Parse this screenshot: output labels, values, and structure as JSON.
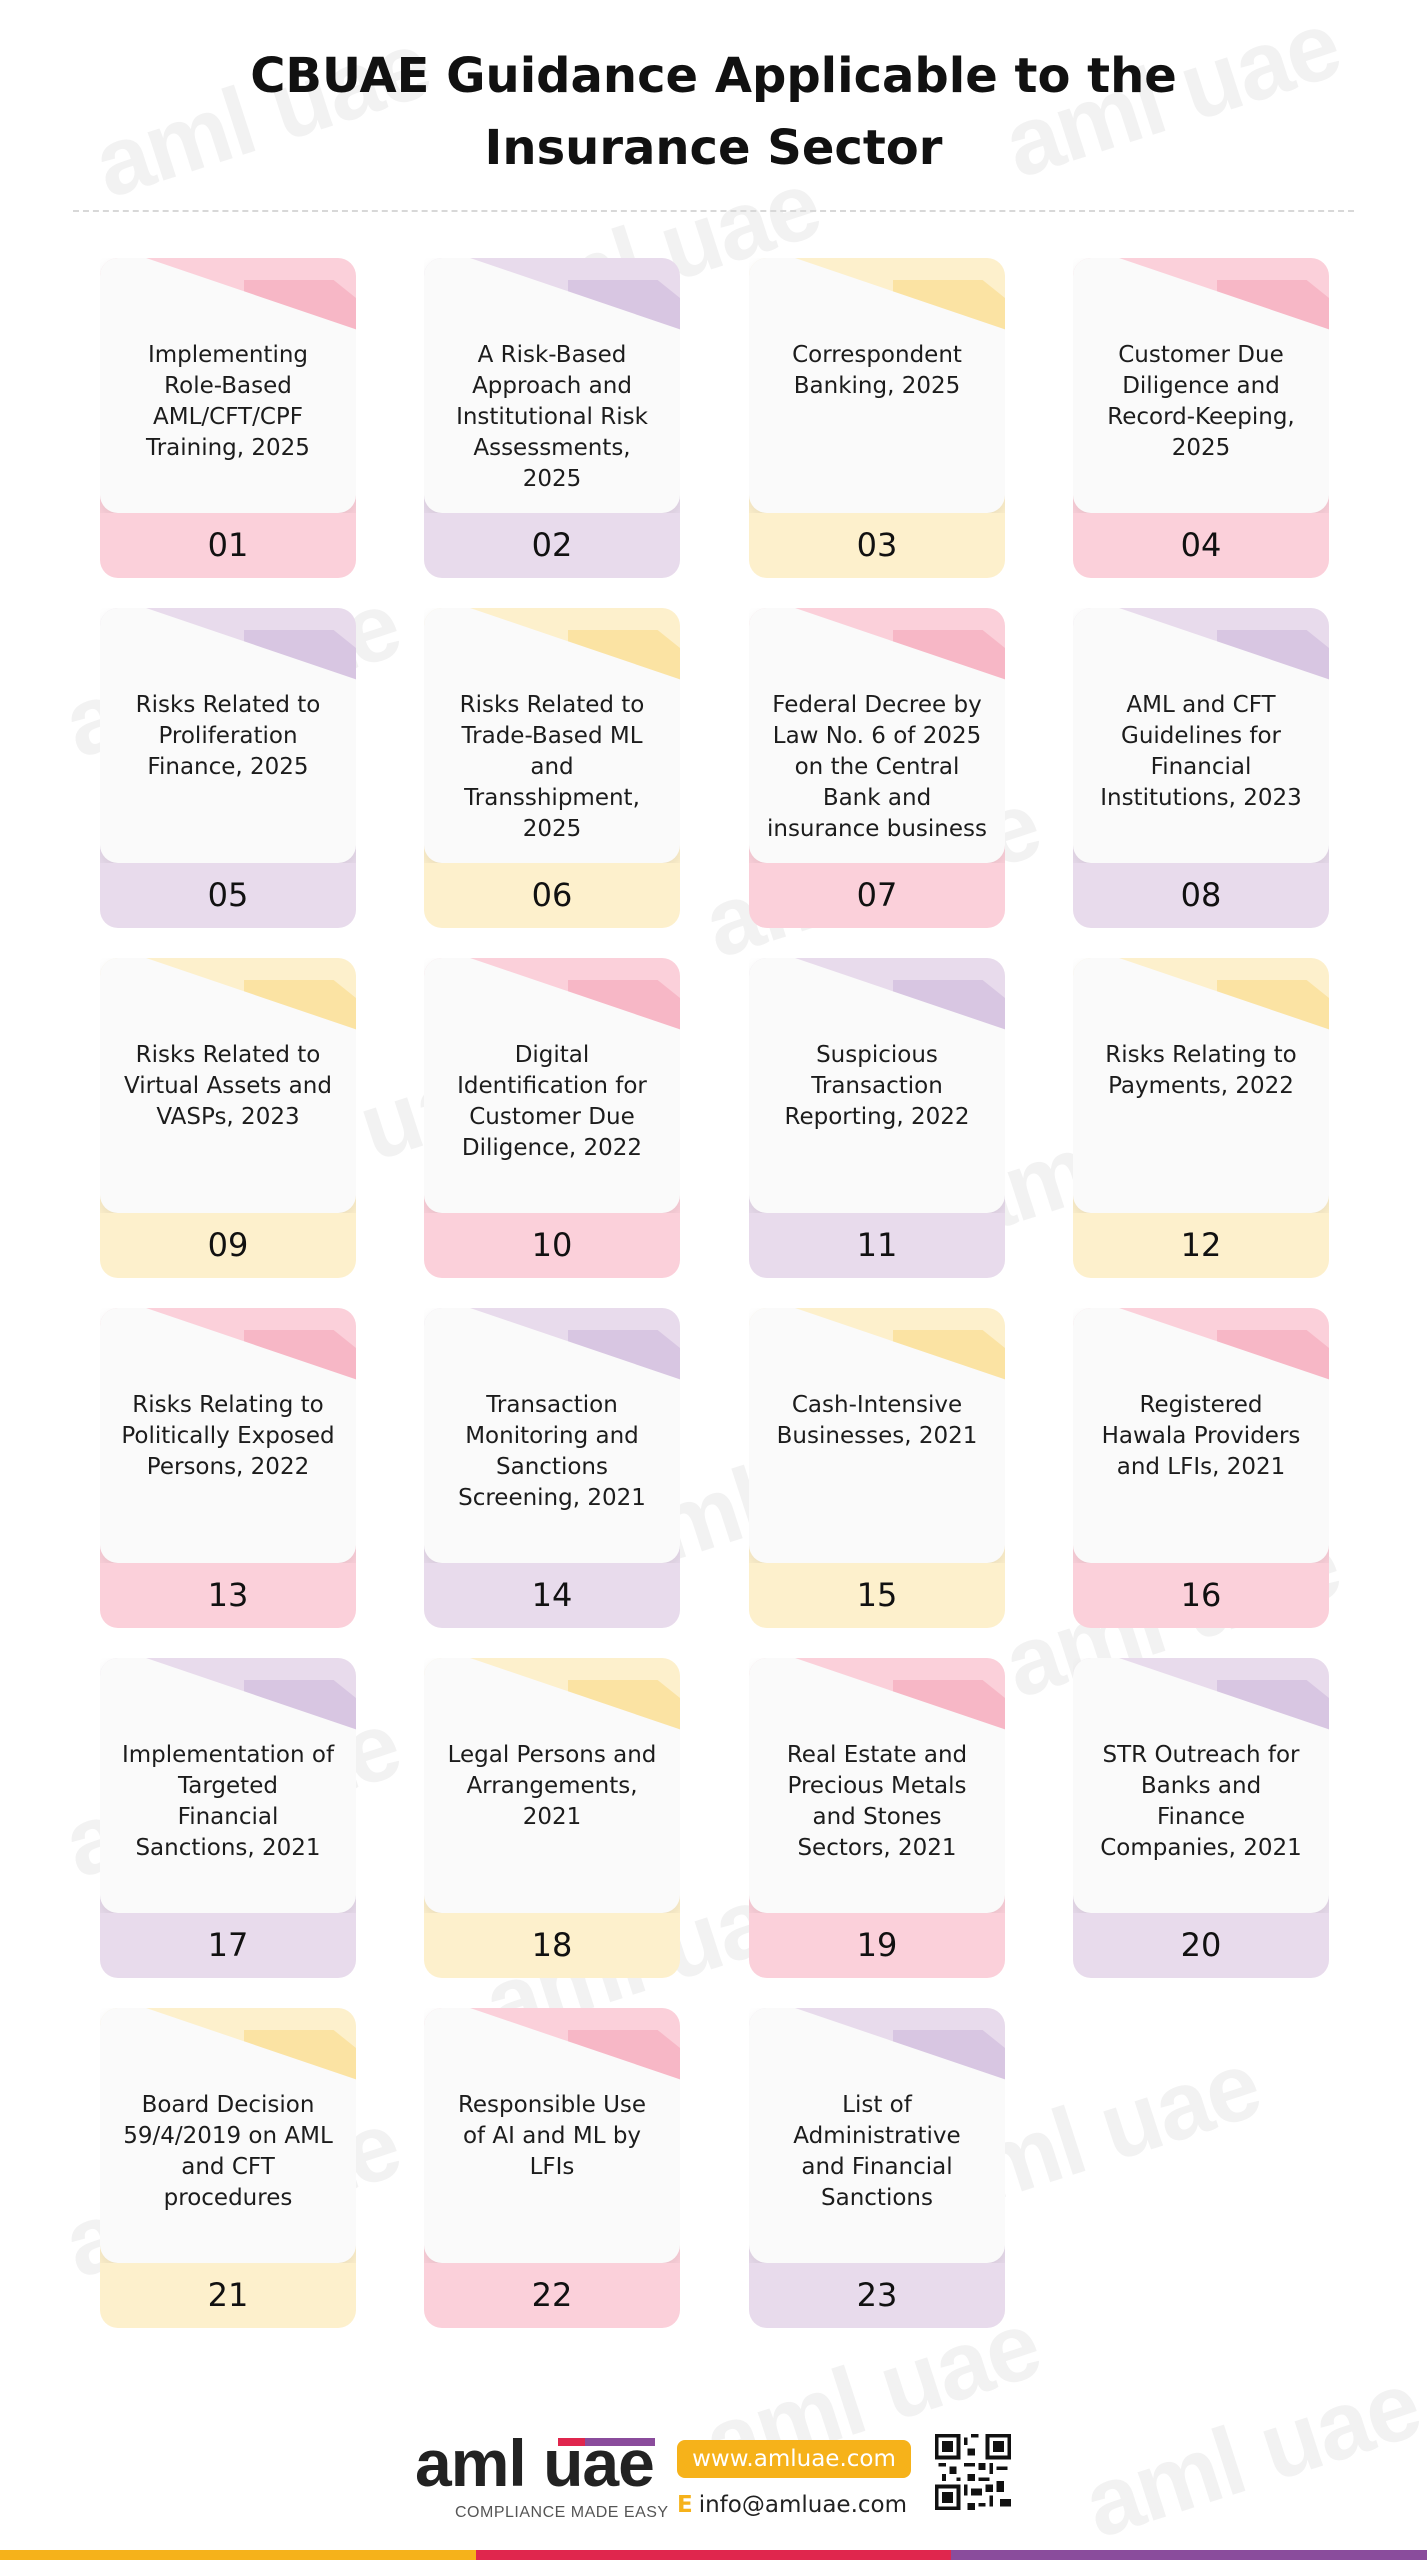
{
  "title": {
    "line1": "CBUAE Guidance Applicable to the",
    "line2": "Insurance Sector"
  },
  "watermark": "aml uae",
  "cards": [
    {
      "number": "01",
      "lines": [
        "Implementing",
        "Role-Based",
        "AML/CFT/CPF",
        "Training, 2025"
      ],
      "color": "pink"
    },
    {
      "number": "02",
      "lines": [
        "A Risk-Based",
        "Approach and",
        "Institutional Risk",
        "Assessments,",
        "2025"
      ],
      "color": "lavender"
    },
    {
      "number": "03",
      "lines": [
        "Correspondent",
        "Banking, 2025"
      ],
      "color": "yellow"
    },
    {
      "number": "04",
      "lines": [
        "Customer Due",
        "Diligence and",
        "Record-Keeping,",
        "2025"
      ],
      "color": "pink"
    },
    {
      "number": "05",
      "lines": [
        "Risks Related to",
        "Proliferation",
        "Finance, 2025"
      ],
      "color": "lavender"
    },
    {
      "number": "06",
      "lines": [
        "Risks Related to",
        "Trade-Based ML",
        "and",
        "Transshipment,",
        "2025"
      ],
      "color": "yellow"
    },
    {
      "number": "07",
      "lines": [
        "Federal Decree by",
        "Law No. 6 of 2025",
        "on the Central",
        "Bank and",
        "insurance business"
      ],
      "color": "pink"
    },
    {
      "number": "08",
      "lines": [
        "AML and CFT",
        "Guidelines for",
        "Financial",
        "Institutions, 2023"
      ],
      "color": "lavender"
    },
    {
      "number": "09",
      "lines": [
        "Risks Related to",
        "Virtual Assets and",
        "VASPs, 2023"
      ],
      "color": "yellow"
    },
    {
      "number": "10",
      "lines": [
        "Digital",
        "Identification for",
        "Customer Due",
        "Diligence, 2022"
      ],
      "color": "pink"
    },
    {
      "number": "11",
      "lines": [
        "Suspicious",
        "Transaction",
        "Reporting, 2022"
      ],
      "color": "lavender"
    },
    {
      "number": "12",
      "lines": [
        "Risks Relating to",
        "Payments, 2022"
      ],
      "color": "yellow"
    },
    {
      "number": "13",
      "lines": [
        "Risks Relating to",
        "Politically Exposed",
        "Persons, 2022"
      ],
      "color": "pink"
    },
    {
      "number": "14",
      "lines": [
        "Transaction",
        "Monitoring and",
        "Sanctions",
        "Screening, 2021"
      ],
      "color": "lavender"
    },
    {
      "number": "15",
      "lines": [
        "Cash-Intensive",
        "Businesses, 2021"
      ],
      "color": "yellow"
    },
    {
      "number": "16",
      "lines": [
        "Registered",
        "Hawala Providers",
        "and LFIs, 2021"
      ],
      "color": "pink"
    },
    {
      "number": "17",
      "lines": [
        "Implementation of",
        "Targeted",
        "Financial",
        "Sanctions, 2021"
      ],
      "color": "lavender"
    },
    {
      "number": "18",
      "lines": [
        "Legal Persons and",
        "Arrangements,",
        "2021"
      ],
      "color": "yellow"
    },
    {
      "number": "19",
      "lines": [
        "Real Estate and",
        "Precious Metals",
        "and Stones",
        "Sectors, 2021"
      ],
      "color": "pink"
    },
    {
      "number": "20",
      "lines": [
        "STR Outreach for",
        "Banks and",
        "Finance",
        "Companies, 2021"
      ],
      "color": "lavender"
    },
    {
      "number": "21",
      "lines": [
        "Board Decision",
        "59/4/2019 on AML",
        "and CFT",
        "procedures"
      ],
      "color": "yellow"
    },
    {
      "number": "22",
      "lines": [
        "Responsible Use",
        "of AI and ML by",
        "LFIs"
      ],
      "color": "pink"
    },
    {
      "number": "23",
      "lines": [
        "List of",
        "Administrative",
        "and Financial",
        "Sanctions"
      ],
      "color": "lavender"
    }
  ],
  "footer": {
    "logo": "aml uae",
    "tagline": "COMPLIANCE MADE EASY",
    "website": "www.amluae.com",
    "email_prefix": "E",
    "email": "info@amluae.com",
    "qr_icon": "qr-code-icon"
  },
  "colors": {
    "pink": "#fbd0da",
    "lavender": "#e8dbec",
    "yellow": "#fdf0cc",
    "accent_yellow": "#f6b21a",
    "accent_red": "#e0264d",
    "accent_purple": "#8a4c9c"
  }
}
